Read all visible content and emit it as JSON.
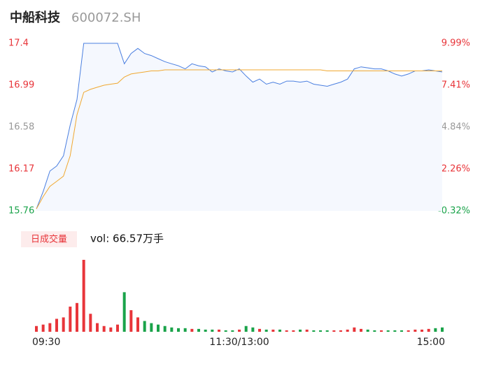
{
  "chart_data": {
    "type": "intraday",
    "title": "中船科技",
    "subtitle": "600072.SH",
    "volume_label": "日成交量",
    "volume_text": "vol: 66.57万手",
    "ylim": [
      15.76,
      17.4
    ],
    "yticks": [
      15.76,
      16.17,
      16.58,
      16.99,
      17.4
    ],
    "y2lim": [
      -0.32,
      9.99
    ],
    "y2ticks": [
      {
        "value": -0.32,
        "label": "-0.32%"
      },
      {
        "value": 2.26,
        "label": "2.26%"
      },
      {
        "value": 4.84,
        "label": "4.84%"
      },
      {
        "value": 7.41,
        "label": "7.41%"
      },
      {
        "value": 9.99,
        "label": "9.99%"
      }
    ],
    "xlim": [
      0,
      60
    ],
    "xticks": [
      {
        "value": 0,
        "label": "09:30"
      },
      {
        "value": 30,
        "label": "11:30/13:00"
      },
      {
        "value": 60,
        "label": "15:00"
      }
    ],
    "up_color": "#e8353a",
    "down_color": "#1aa34a",
    "flat_color": "#999999",
    "series": [
      {
        "name": "price",
        "color": "#4a7fe0",
        "values": [
          15.78,
          15.95,
          16.15,
          16.2,
          16.3,
          16.6,
          16.85,
          17.4,
          17.4,
          17.4,
          17.4,
          17.4,
          17.4,
          17.2,
          17.3,
          17.35,
          17.3,
          17.28,
          17.25,
          17.22,
          17.2,
          17.18,
          17.15,
          17.2,
          17.18,
          17.17,
          17.12,
          17.15,
          17.13,
          17.12,
          17.15,
          17.08,
          17.02,
          17.05,
          17.0,
          17.02,
          17.0,
          17.03,
          17.03,
          17.02,
          17.03,
          17.0,
          16.99,
          16.98,
          17.0,
          17.02,
          17.05,
          17.15,
          17.17,
          17.16,
          17.15,
          17.15,
          17.13,
          17.1,
          17.08,
          17.1,
          17.13,
          17.13,
          17.14,
          17.13,
          17.12
        ]
      },
      {
        "name": "average",
        "color": "#f0a830",
        "values": [
          15.78,
          15.9,
          16.0,
          16.05,
          16.1,
          16.3,
          16.7,
          16.92,
          16.95,
          16.97,
          16.99,
          17.0,
          17.01,
          17.07,
          17.1,
          17.11,
          17.12,
          17.13,
          17.13,
          17.14,
          17.14,
          17.14,
          17.14,
          17.14,
          17.14,
          17.14,
          17.14,
          17.14,
          17.14,
          17.14,
          17.14,
          17.14,
          17.14,
          17.14,
          17.14,
          17.14,
          17.14,
          17.14,
          17.14,
          17.14,
          17.14,
          17.14,
          17.14,
          17.13,
          17.13,
          17.13,
          17.13,
          17.13,
          17.13,
          17.13,
          17.13,
          17.13,
          17.13,
          17.13,
          17.13,
          17.13,
          17.13,
          17.13,
          17.13,
          17.13,
          17.13
        ]
      }
    ],
    "volume": [
      8,
      10,
      12,
      18,
      20,
      35,
      40,
      100,
      25,
      12,
      8,
      6,
      10,
      55,
      30,
      20,
      15,
      12,
      10,
      8,
      6,
      5,
      5,
      4,
      4,
      3,
      3,
      3,
      2,
      2,
      3,
      8,
      6,
      4,
      3,
      3,
      3,
      2,
      2,
      3,
      3,
      2,
      2,
      2,
      2,
      2,
      3,
      6,
      4,
      3,
      2,
      2,
      2,
      2,
      2,
      2,
      3,
      3,
      4,
      5,
      6
    ]
  }
}
